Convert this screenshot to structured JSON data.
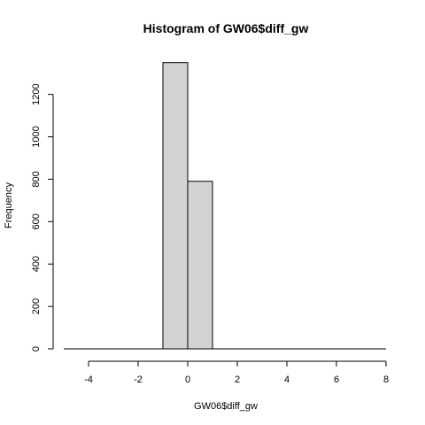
{
  "chart_data": {
    "type": "bar",
    "title": "Histogram of GW06$diff_gw",
    "xlabel": "GW06$diff_gw",
    "ylabel": "Frequency",
    "bins": [
      {
        "x0": -5,
        "x1": -4,
        "count": 0
      },
      {
        "x0": -4,
        "x1": -3,
        "count": 0
      },
      {
        "x0": -3,
        "x1": -2,
        "count": 0
      },
      {
        "x0": -2,
        "x1": -1,
        "count": 0
      },
      {
        "x0": -1,
        "x1": 0,
        "count": 1350
      },
      {
        "x0": 0,
        "x1": 1,
        "count": 790
      },
      {
        "x0": 1,
        "x1": 2,
        "count": 0
      },
      {
        "x0": 2,
        "x1": 3,
        "count": 0
      },
      {
        "x0": 3,
        "x1": 4,
        "count": 0
      },
      {
        "x0": 4,
        "x1": 5,
        "count": 0
      },
      {
        "x0": 5,
        "x1": 6,
        "count": 0
      },
      {
        "x0": 6,
        "x1": 7,
        "count": 0
      },
      {
        "x0": 7,
        "x1": 8,
        "count": 0
      }
    ],
    "xticks": [
      "-4",
      "-2",
      "0",
      "2",
      "4",
      "6",
      "8"
    ],
    "yticks": [
      "0",
      "200",
      "400",
      "600",
      "800",
      "1000",
      "1200"
    ],
    "xlim": [
      -5,
      8
    ],
    "ylim": [
      0,
      1350
    ],
    "grid": false,
    "legend": "none"
  }
}
